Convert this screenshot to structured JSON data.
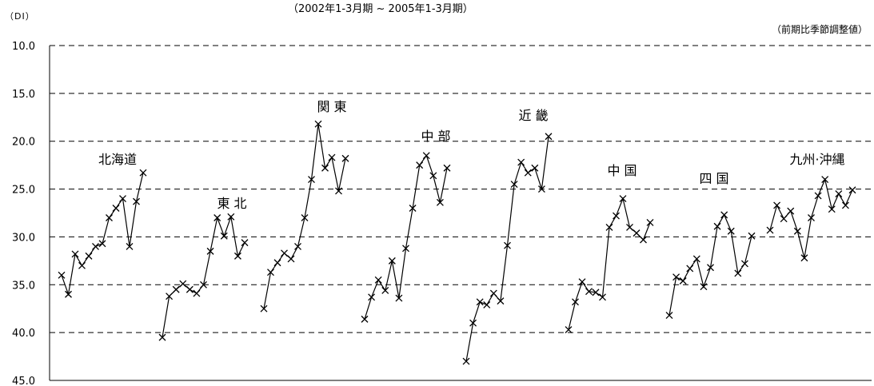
{
  "header": {
    "subtitle": "（2002年1-3月期 ~ 2005年1-3月期）",
    "unit_left": "（DI）",
    "unit_right": "（前期比季節調整値）"
  },
  "chart_data": {
    "type": "line",
    "title": "",
    "subtitle": "（2002年1-3月期 ~ 2005年1-3月期）",
    "ylabel": "（DI）",
    "note": "（前期比季節調整値）",
    "y_axis_reversed": true,
    "ylim": [
      10.0,
      45.0
    ],
    "yticks": [
      "10.0",
      "15.0",
      "20.0",
      "25.0",
      "30.0",
      "35.0",
      "40.0",
      "45.0"
    ],
    "grid": true,
    "marker": "x",
    "series": [
      {
        "name": "北海道",
        "values": [
          34.0,
          36.0,
          31.8,
          33.0,
          32.0,
          31.0,
          30.7,
          28.0,
          27.0,
          26.0,
          31.0,
          26.3,
          23.3
        ]
      },
      {
        "name": "東 北",
        "values": [
          40.5,
          36.2,
          35.5,
          34.9,
          35.5,
          35.9,
          35.0,
          31.5,
          28.0,
          29.9,
          27.9,
          32.0,
          30.6
        ]
      },
      {
        "name": "関 東",
        "values": [
          37.5,
          33.7,
          32.7,
          31.7,
          32.3,
          31.0,
          28.0,
          24.0,
          18.2,
          22.8,
          21.7,
          25.2,
          21.8
        ]
      },
      {
        "name": "中 部",
        "values": [
          38.6,
          36.3,
          34.5,
          35.6,
          32.5,
          36.4,
          31.2,
          27.0,
          22.5,
          21.5,
          23.6,
          26.4,
          22.8
        ]
      },
      {
        "name": "近 畿",
        "values": [
          43.0,
          39.0,
          36.8,
          37.1,
          35.9,
          36.7,
          30.9,
          24.5,
          22.2,
          23.3,
          22.8,
          25.0,
          19.5
        ]
      },
      {
        "name": "中 国",
        "values": [
          39.7,
          36.8,
          34.7,
          35.7,
          35.8,
          36.3,
          29.0,
          27.8,
          26.0,
          29.0,
          29.6,
          30.3,
          28.5
        ]
      },
      {
        "name": "四 国",
        "values": [
          38.2,
          34.2,
          34.6,
          33.3,
          32.3,
          35.2,
          33.2,
          28.9,
          27.7,
          29.4,
          33.8,
          32.8,
          29.9
        ]
      },
      {
        "name": "九州·沖縄",
        "values": [
          29.3,
          26.7,
          28.1,
          27.3,
          29.4,
          32.2,
          28.0,
          25.7,
          24.0,
          27.1,
          25.5,
          26.7,
          25.1
        ]
      }
    ]
  }
}
